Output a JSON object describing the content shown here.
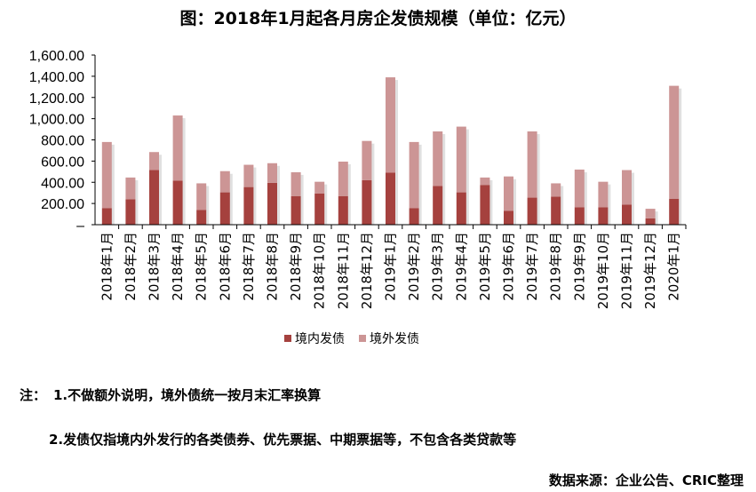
{
  "chart_data": {
    "type": "bar",
    "stacked": true,
    "title": "图：2018年1月起各月房企发债规模（单位：亿元）",
    "categories": [
      "2018年1月",
      "2018年2月",
      "2018年3月",
      "2018年4月",
      "2018年5月",
      "2018年6月",
      "2018年7月",
      "2018年8月",
      "2018年9月",
      "2018年10月",
      "2018年11月",
      "2018年12月",
      "2019年1月",
      "2019年2月",
      "2019年3月",
      "2019年4月",
      "2019年5月",
      "2019年6月",
      "2019年7月",
      "2019年8月",
      "2019年9月",
      "2019年10月",
      "2019年11月",
      "2019年12月",
      "2020年1月"
    ],
    "series": [
      {
        "name": "境内发债",
        "color": "#a5413e",
        "values": [
          155,
          240,
          515,
          415,
          140,
          305,
          355,
          395,
          270,
          295,
          270,
          420,
          490,
          155,
          365,
          305,
          375,
          130,
          255,
          265,
          165,
          165,
          190,
          60,
          245
        ]
      },
      {
        "name": "境外发债",
        "color": "#cc9595",
        "values": [
          625,
          205,
          170,
          615,
          250,
          200,
          210,
          185,
          225,
          110,
          325,
          370,
          900,
          625,
          515,
          620,
          70,
          325,
          625,
          125,
          355,
          240,
          325,
          90,
          1065
        ]
      }
    ],
    "yticks": [
      "–",
      "200.00",
      "400.00",
      "600.00",
      "800.00",
      "1,000.00",
      "1,200.00",
      "1,400.00",
      "1,600.00"
    ],
    "ylim": [
      0,
      1600
    ],
    "legend_position": "bottom"
  },
  "notes": {
    "label": "注：",
    "line1": "1.不做额外说明，境外债统一按月末汇率换算",
    "line2": "2.发债仅指境内外发行的各类债券、优先票据、中期票据等，不包含各类贷款等"
  },
  "source": "数据来源：企业公告、CRIC整理"
}
